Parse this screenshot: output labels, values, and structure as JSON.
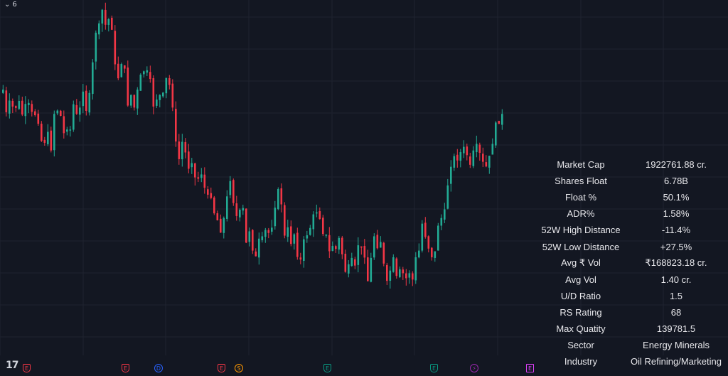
{
  "toolbar": {
    "collapse_count": "6"
  },
  "stats": [
    {
      "label": "Market Cap",
      "value": "1922761.88 cr."
    },
    {
      "label": "Shares Float",
      "value": "6.78B"
    },
    {
      "label": "Float %",
      "value": "50.1%"
    },
    {
      "label": "ADR%",
      "value": "1.58%"
    },
    {
      "label": "52W High Distance",
      "value": "-11.4%"
    },
    {
      "label": "52W Low Distance",
      "value": "+27.5%"
    },
    {
      "label": "Avg ₹ Vol",
      "value": "₹168823.18 cr."
    },
    {
      "label": "Avg Vol",
      "value": "1.40 cr."
    },
    {
      "label": "U/D Ratio",
      "value": "1.5"
    },
    {
      "label": "RS Rating",
      "value": "68"
    },
    {
      "label": "Max Quatity",
      "value": "139781.5"
    },
    {
      "label": "Sector",
      "value": "Energy Minerals"
    },
    {
      "label": "Industry",
      "value": "Oil Refining/Marketing"
    }
  ],
  "events": [
    {
      "letter": "E",
      "kind": "earnings",
      "color": "#f23645"
    },
    {
      "letter": "E",
      "kind": "earnings",
      "color": "#f23645"
    },
    {
      "letter": "D",
      "kind": "dividend",
      "color": "#2962ff"
    },
    {
      "letter": "E",
      "kind": "earnings",
      "color": "#f23645"
    },
    {
      "letter": "S",
      "kind": "split",
      "color": "#ff9800"
    },
    {
      "letter": "E",
      "kind": "earnings",
      "color": "#089981"
    },
    {
      "letter": "E",
      "kind": "earnings",
      "color": "#089981"
    },
    {
      "letter": "⚡",
      "kind": "flash",
      "color": "#9c27b0"
    },
    {
      "letter": "E",
      "kind": "earnings",
      "color": "#e040fb"
    }
  ],
  "colors": {
    "background": "#131722",
    "grid": "#1f2330",
    "up": "#22ab94",
    "down": "#f23645",
    "text": "#e8e8ec"
  },
  "chart_data": {
    "type": "candlestick",
    "title": "",
    "xlabel": "",
    "ylabel": "",
    "grid": true,
    "ylim": [
      0,
      1
    ],
    "y_note": "no price axis visible; values are normalized price levels",
    "closes": [
      0.752,
      0.684,
      0.719,
      0.701,
      0.697,
      0.718,
      0.677,
      0.709,
      0.712,
      0.685,
      0.675,
      0.649,
      0.598,
      0.592,
      0.625,
      0.569,
      0.679,
      0.689,
      0.673,
      0.621,
      0.632,
      0.632,
      0.708,
      0.679,
      0.698,
      0.746,
      0.688,
      0.742,
      0.834,
      0.923,
      0.951,
      0.992,
      0.947,
      0.964,
      0.932,
      0.828,
      0.786,
      0.829,
      0.815,
      0.704,
      0.736,
      0.698,
      0.752,
      0.797,
      0.807,
      0.81,
      0.784,
      0.701,
      0.722,
      0.736,
      0.743,
      0.787,
      0.766,
      0.698,
      0.596,
      0.543,
      0.595,
      0.563,
      0.514,
      0.531,
      0.488,
      0.484,
      0.497,
      0.457,
      0.436,
      0.426,
      0.38,
      0.359,
      0.322,
      0.366,
      0.431,
      0.477,
      0.411,
      0.372,
      0.391,
      0.396,
      0.292,
      0.326,
      0.268,
      0.251,
      0.304,
      0.311,
      0.33,
      0.321,
      0.337,
      0.397,
      0.453,
      0.407,
      0.313,
      0.338,
      0.288,
      0.317,
      0.249,
      0.241,
      0.302,
      0.314,
      0.336,
      0.377,
      0.383,
      0.363,
      0.318,
      0.316,
      0.266,
      0.282,
      0.273,
      0.306,
      0.257,
      0.204,
      0.227,
      0.246,
      0.223,
      0.284,
      0.277,
      0.247,
      0.176,
      0.246,
      0.311,
      0.275,
      0.294,
      0.229,
      0.177,
      0.208,
      0.248,
      0.192,
      0.212,
      0.2,
      0.185,
      0.2,
      0.181,
      0.248,
      0.268,
      0.349,
      0.309,
      0.274,
      0.248,
      0.266,
      0.343,
      0.366,
      0.392,
      0.464,
      0.52,
      0.552,
      0.539,
      0.564,
      0.58,
      0.555,
      0.526,
      0.569,
      0.589,
      0.562,
      0.535,
      0.521,
      0.553,
      0.589,
      0.653,
      0.649,
      0.679
    ]
  }
}
